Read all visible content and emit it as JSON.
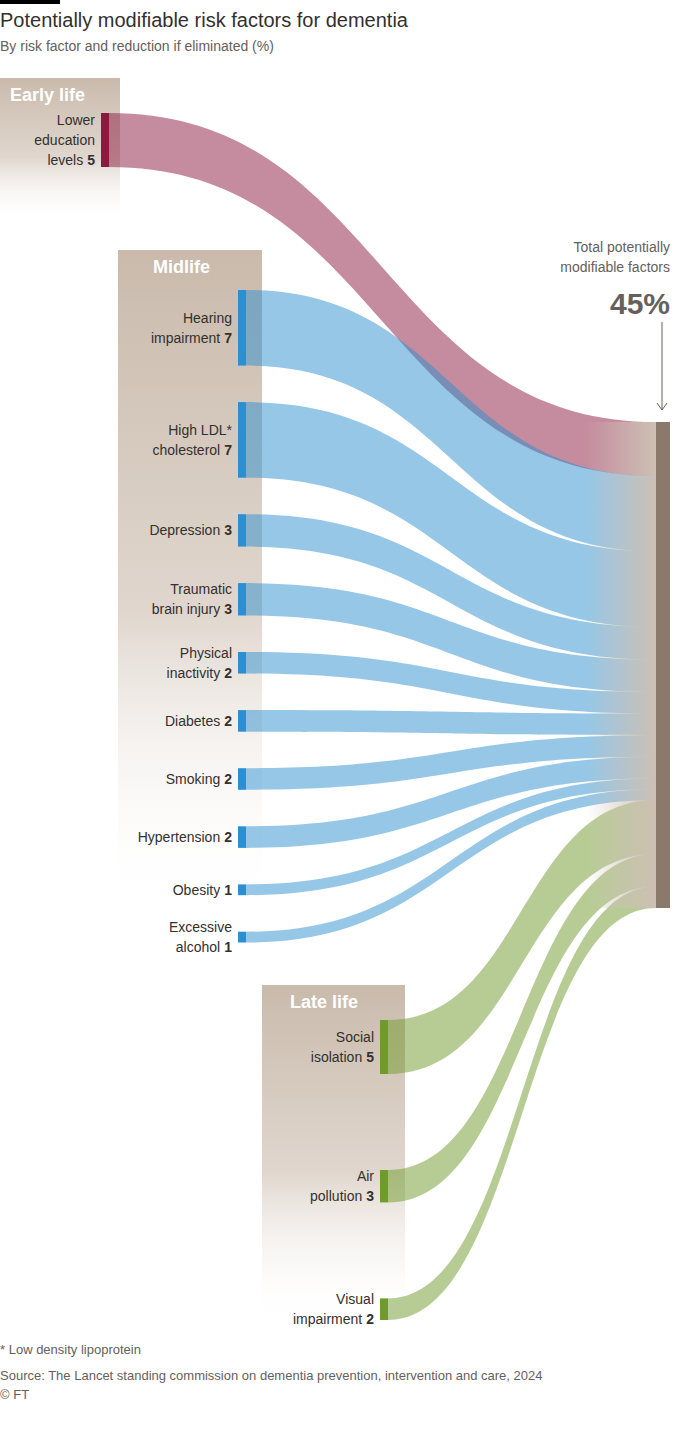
{
  "chart_data": {
    "type": "sankey",
    "title": "Potentially modifiable risk factors for dementia",
    "subtitle": "By risk factor and reduction if eliminated (%)",
    "stages": [
      {
        "name": "Early life",
        "color": "#8c1a40",
        "categories": [
          "Lower\neducation\nlevels"
        ],
        "values": [
          5
        ]
      },
      {
        "name": "Midlife",
        "color": "#2e8fd0",
        "categories": [
          "Hearing\nimpairment",
          "High LDL*\ncholesterol",
          "Depression",
          "Traumatic\nbrain injury",
          "Physical\ninactivity",
          "Diabetes",
          "Smoking",
          "Hypertension",
          "Obesity",
          "Excessive\nalcohol"
        ],
        "values": [
          7,
          7,
          3,
          3,
          2,
          2,
          2,
          2,
          1,
          1
        ]
      },
      {
        "name": "Late life",
        "color": "#6f9a2c",
        "categories": [
          "Social\nisolation",
          "Air\npollution",
          "Visual\nimpairment"
        ],
        "values": [
          5,
          3,
          2
        ]
      }
    ],
    "total": {
      "label": "Total potentially\nmodifiable factors",
      "value": 45,
      "value_label": "45%"
    },
    "data_labels": true,
    "footnote": "* Low density lipoprotein",
    "source": "Source: The Lancet standing commission on dementia prevention, intervention and care, 2024",
    "copyright": "© FT"
  }
}
